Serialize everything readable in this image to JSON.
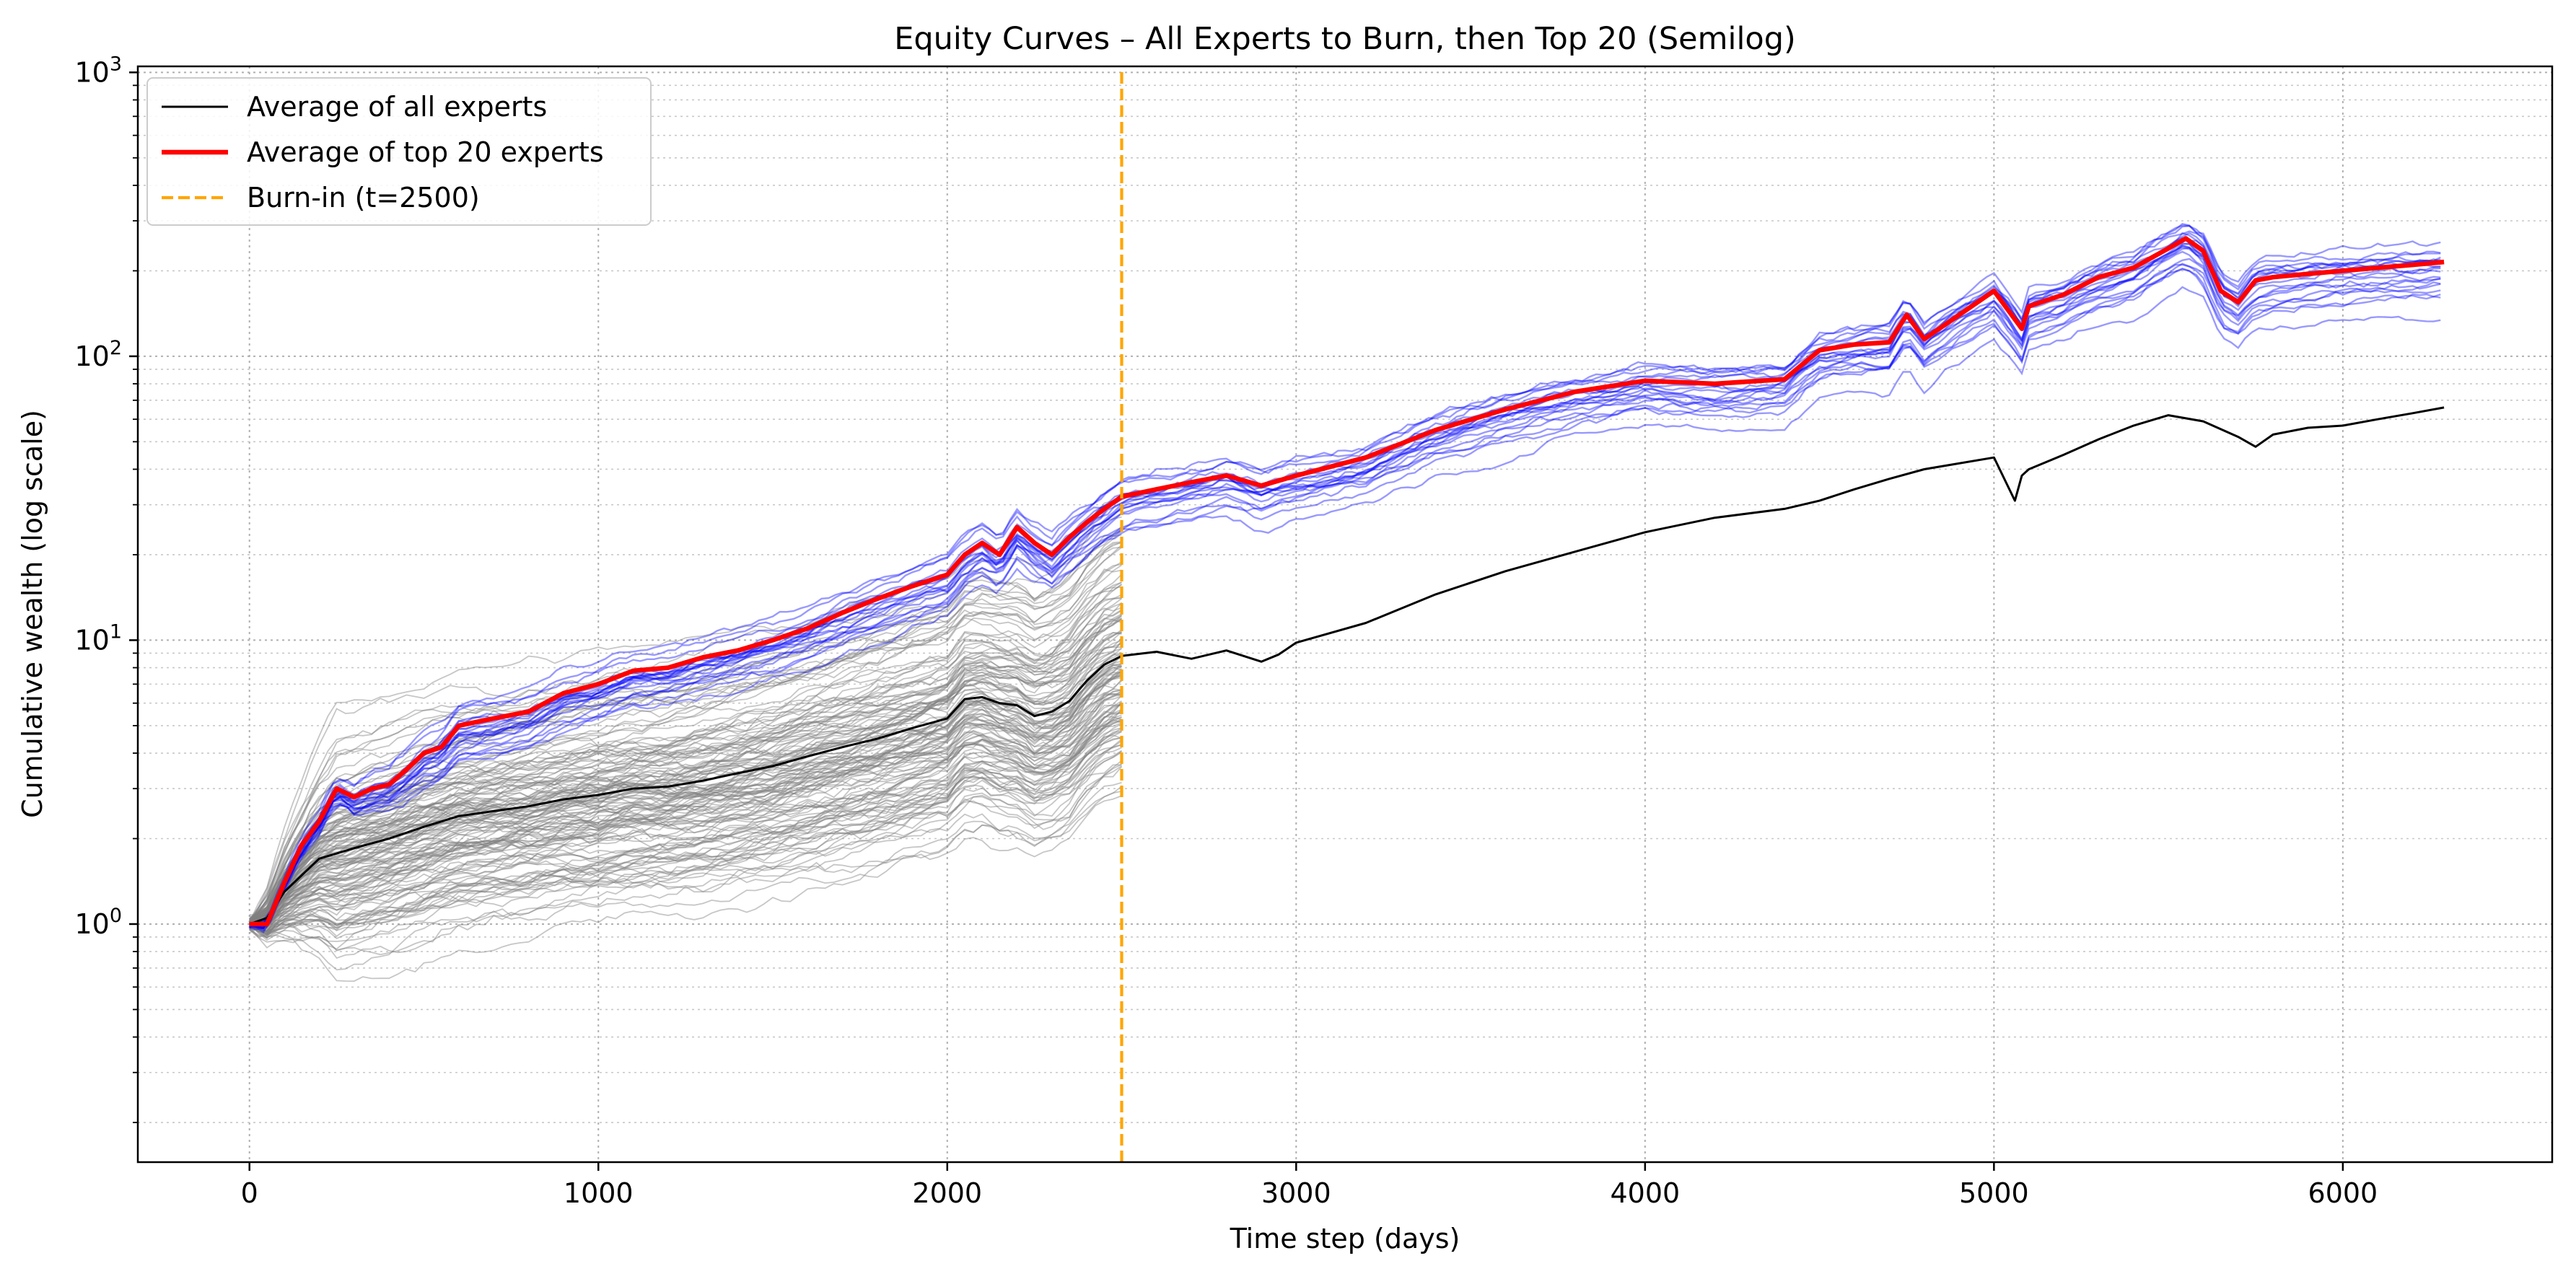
{
  "chart_data": {
    "type": "line",
    "title": "Equity Curves – All Experts to Burn, then Top 20 (Semilog)",
    "xlabel": "Time step (days)",
    "ylabel": "Cumulative wealth (log scale)",
    "yscale": "log",
    "xlim": [
      -320,
      6600
    ],
    "ylim": [
      0.145,
      1050
    ],
    "xticks": [
      0,
      1000,
      2000,
      3000,
      4000,
      5000,
      6000
    ],
    "xtick_labels": [
      "0",
      "1000",
      "2000",
      "3000",
      "4000",
      "5000",
      "6000"
    ],
    "yticks": [
      1,
      10,
      100,
      1000
    ],
    "ytick_labels": [
      {
        "base": "10",
        "exp": "0"
      },
      {
        "base": "10",
        "exp": "1"
      },
      {
        "base": "10",
        "exp": "2"
      },
      {
        "base": "10",
        "exp": "3"
      }
    ],
    "grid": true,
    "legend_position": "top-left",
    "burn_in": 2500,
    "series": [
      {
        "name": "Average of all experts",
        "color": "#000000",
        "style": "solid",
        "x": [
          0,
          50,
          100,
          200,
          300,
          400,
          500,
          600,
          700,
          800,
          900,
          1000,
          1100,
          1200,
          1300,
          1400,
          1500,
          1600,
          1700,
          1800,
          1900,
          2000,
          2050,
          2100,
          2150,
          2200,
          2250,
          2300,
          2350,
          2400,
          2450,
          2500,
          2600,
          2700,
          2800,
          2900,
          2950,
          3000,
          3200,
          3400,
          3600,
          3800,
          4000,
          4200,
          4400,
          4500,
          4600,
          4700,
          4800,
          5000,
          5060,
          5080,
          5100,
          5200,
          5300,
          5400,
          5500,
          5600,
          5700,
          5750,
          5800,
          5900,
          6000,
          6100,
          6200,
          6290
        ],
        "values": [
          1.0,
          1.05,
          1.3,
          1.7,
          1.85,
          2.0,
          2.2,
          2.4,
          2.5,
          2.6,
          2.75,
          2.85,
          3.0,
          3.05,
          3.2,
          3.4,
          3.6,
          3.9,
          4.2,
          4.5,
          4.9,
          5.3,
          6.2,
          6.3,
          6.0,
          5.9,
          5.4,
          5.6,
          6.1,
          7.2,
          8.2,
          8.8,
          9.1,
          8.6,
          9.2,
          8.4,
          8.9,
          9.8,
          11.5,
          14.5,
          17.5,
          20.5,
          24.0,
          27.0,
          29.0,
          31.0,
          34.0,
          37.0,
          40.0,
          44.0,
          31.0,
          38.0,
          40.0,
          45.0,
          51.0,
          57.0,
          62.0,
          59.0,
          52.0,
          48.0,
          53.0,
          56.0,
          57.0,
          60.0,
          63.0,
          66.0
        ]
      },
      {
        "name": "Average of top 20 experts",
        "color": "#ff0000",
        "style": "solid",
        "x": [
          0,
          50,
          100,
          150,
          200,
          250,
          300,
          350,
          400,
          450,
          500,
          550,
          600,
          700,
          800,
          900,
          1000,
          1100,
          1200,
          1300,
          1400,
          1500,
          1600,
          1700,
          1800,
          1900,
          2000,
          2050,
          2100,
          2150,
          2200,
          2250,
          2300,
          2350,
          2400,
          2450,
          2500,
          2600,
          2700,
          2800,
          2900,
          3000,
          3200,
          3400,
          3600,
          3800,
          4000,
          4200,
          4400,
          4500,
          4600,
          4700,
          4750,
          4800,
          5000,
          5080,
          5100,
          5200,
          5300,
          5400,
          5500,
          5550,
          5600,
          5650,
          5700,
          5750,
          5800,
          5900,
          6000,
          6100,
          6200,
          6290
        ],
        "values": [
          1.0,
          1.0,
          1.4,
          1.9,
          2.3,
          3.0,
          2.8,
          3.0,
          3.1,
          3.5,
          4.0,
          4.2,
          5.0,
          5.3,
          5.6,
          6.5,
          7.0,
          7.8,
          8.0,
          8.7,
          9.2,
          10.0,
          11.0,
          12.5,
          14.0,
          15.5,
          17.0,
          20.0,
          22.0,
          20.0,
          25.0,
          22.0,
          20.0,
          23.0,
          26.0,
          29.0,
          32.0,
          34.0,
          36.0,
          38.0,
          35.0,
          38.0,
          44.0,
          55.0,
          65.0,
          75.0,
          82.0,
          80.0,
          83.0,
          105.0,
          110.0,
          112.0,
          140.0,
          115.0,
          170.0,
          125.0,
          150.0,
          165.0,
          190.0,
          205.0,
          240.0,
          260.0,
          235.0,
          170.0,
          155.0,
          185.0,
          190.0,
          195.0,
          200.0,
          205.0,
          210.0,
          215.0
        ]
      },
      {
        "name": "Burn-in (t=2500)",
        "color": "#ffa500",
        "style": "dashed",
        "x": [
          2500,
          2500
        ],
        "values": [
          0.145,
          1050
        ]
      }
    ],
    "expert_colors": {
      "pre_burn": "#808080",
      "top20_pre_burn": "#0000ff",
      "top20_post_burn": "#0000ff"
    }
  }
}
